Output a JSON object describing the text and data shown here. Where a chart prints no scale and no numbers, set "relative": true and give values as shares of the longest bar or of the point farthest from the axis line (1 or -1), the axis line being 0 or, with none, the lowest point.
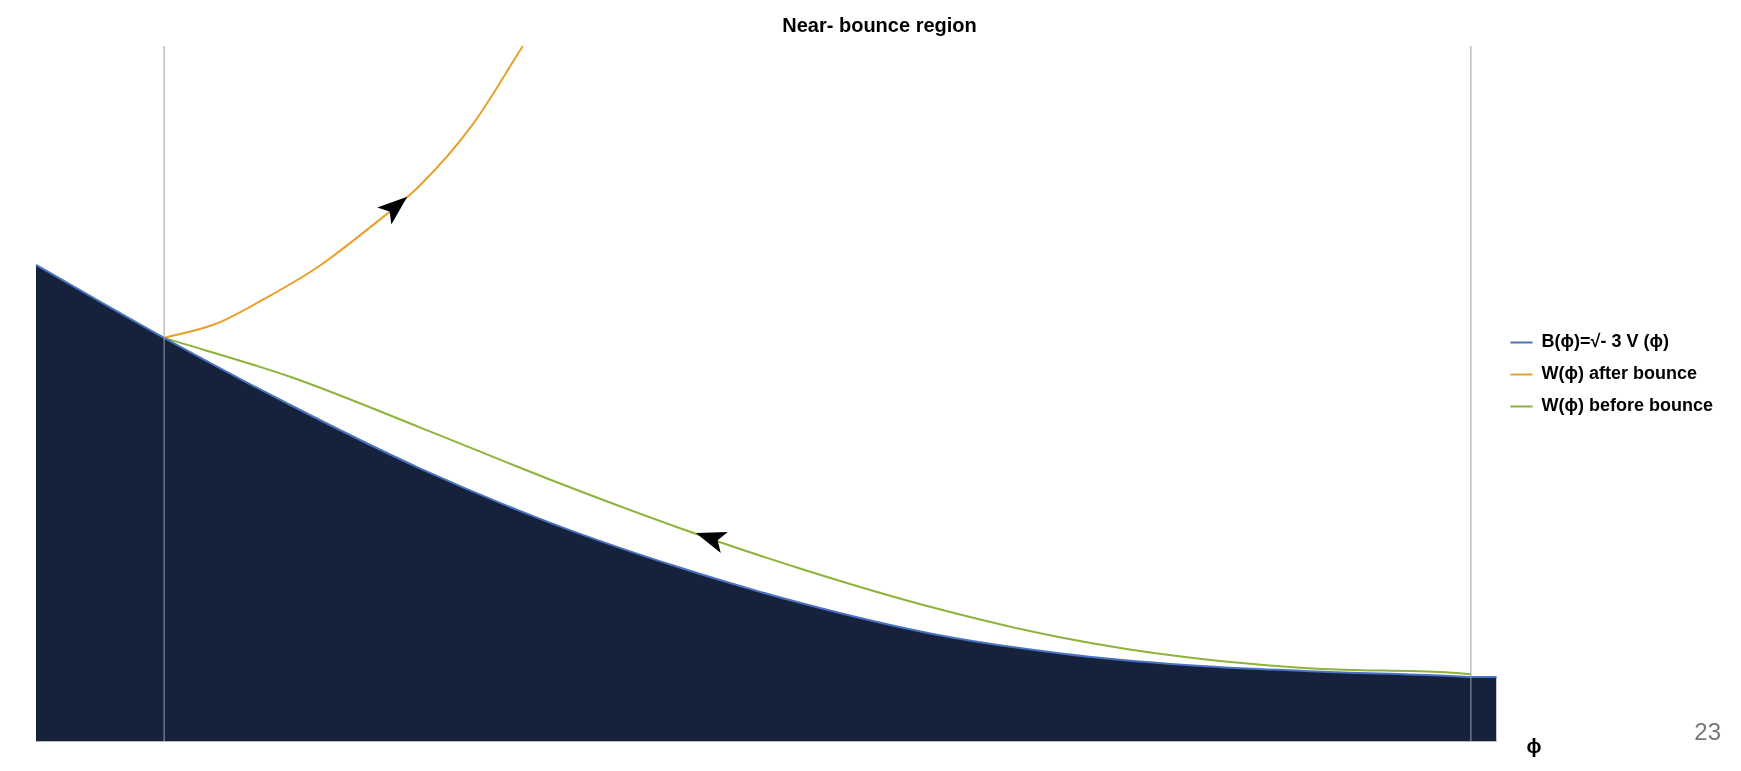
{
  "chart_data": {
    "type": "line",
    "title": "Near- bounce region",
    "xlabel": "ϕ",
    "relative": true,
    "legend": "right",
    "grid": false,
    "marker": "none",
    "categories": [
      null,
      null,
      null,
      null,
      null,
      null,
      null,
      null,
      null,
      null,
      null,
      null,
      null,
      null,
      null,
      null,
      null,
      null,
      null,
      null,
      null,
      null,
      null,
      null,
      null,
      null,
      null,
      null,
      null,
      null,
      null,
      null,
      null,
      null,
      null,
      null,
      null,
      null,
      null,
      null,
      null,
      null,
      null,
      null,
      null,
      null,
      null,
      null,
      null,
      null,
      null,
      null,
      null,
      null,
      null,
      null,
      null,
      null
    ],
    "series": [
      {
        "name": "B(ϕ)=√- 3 V (ϕ)",
        "type": "area",
        "color": "#4a72c4",
        "values": [
          0.685,
          null,
          null,
          null,
          null,
          0.58,
          null,
          null,
          null,
          null,
          0.482,
          null,
          null,
          null,
          null,
          0.392,
          null,
          null,
          null,
          null,
          0.315,
          null,
          null,
          null,
          null,
          0.251,
          null,
          null,
          null,
          null,
          0.197,
          null,
          null,
          null,
          null,
          0.154,
          null,
          null,
          null,
          null,
          0.126,
          null,
          null,
          null,
          null,
          0.109,
          null,
          null,
          null,
          null,
          0.1,
          null,
          null,
          null,
          null,
          0.094,
          0.092,
          0.092
        ]
      },
      {
        "name": "W(ϕ) after bounce",
        "color": "#e8a02a",
        "values": [
          null,
          null,
          null,
          null,
          null,
          0.58,
          null,
          0.6,
          null,
          0.638,
          null,
          0.682,
          null,
          0.738,
          null,
          0.8,
          null,
          0.885,
          null,
          1,
          null,
          null,
          null,
          null,
          null,
          null,
          null,
          null,
          null,
          null,
          null,
          null,
          null,
          null,
          null,
          null,
          null,
          null,
          null,
          null,
          null,
          null,
          null,
          null,
          null,
          null,
          null,
          null,
          null,
          null,
          null,
          null,
          null,
          null,
          null,
          null,
          null,
          null
        ]
      },
      {
        "name": "W(ϕ) before bounce",
        "color": "#8db33a",
        "values": [
          null,
          null,
          null,
          null,
          null,
          0.58,
          null,
          null,
          null,
          null,
          0.523,
          null,
          null,
          null,
          null,
          0.451,
          null,
          null,
          null,
          null,
          0.377,
          null,
          null,
          null,
          null,
          0.308,
          null,
          null,
          null,
          null,
          0.246,
          null,
          null,
          null,
          null,
          0.192,
          null,
          null,
          null,
          null,
          0.149,
          null,
          null,
          null,
          null,
          0.12,
          null,
          null,
          null,
          null,
          0.104,
          null,
          null,
          null,
          null,
          0.099,
          0.096,
          null
        ]
      }
    ],
    "annotations": [
      "23"
    ]
  }
}
